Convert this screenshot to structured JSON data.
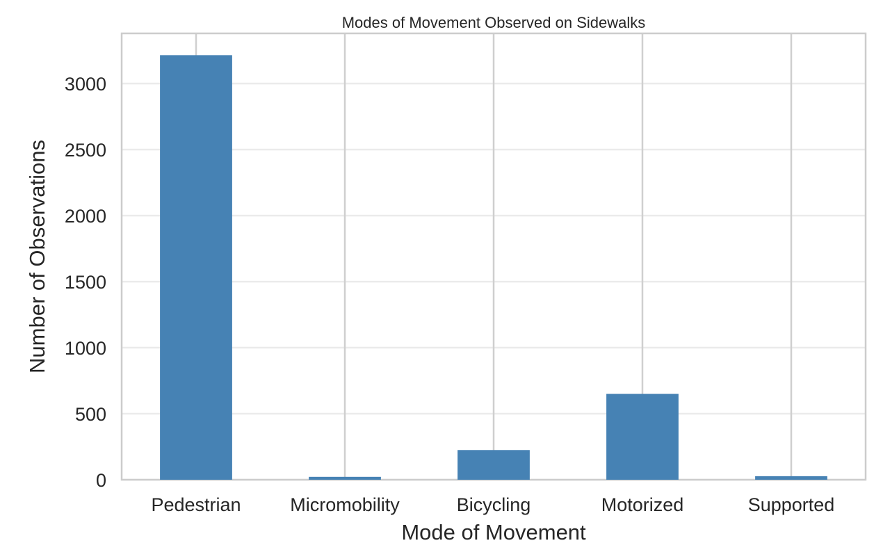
{
  "chart_data": {
    "type": "bar",
    "title": "Modes of Movement Observed on Sidewalks",
    "xlabel": "Mode of Movement",
    "ylabel": "Number of Observations",
    "categories": [
      "Pedestrian",
      "Micromobility",
      "Bicycling",
      "Motorized",
      "Supported"
    ],
    "values": [
      3215,
      22,
      225,
      650,
      27
    ],
    "ylim": [
      0,
      3380
    ],
    "yticks": [
      0,
      500,
      1000,
      1500,
      2000,
      2500,
      3000
    ],
    "grid": true,
    "legend": "none",
    "bar_color": "#4682b4"
  }
}
